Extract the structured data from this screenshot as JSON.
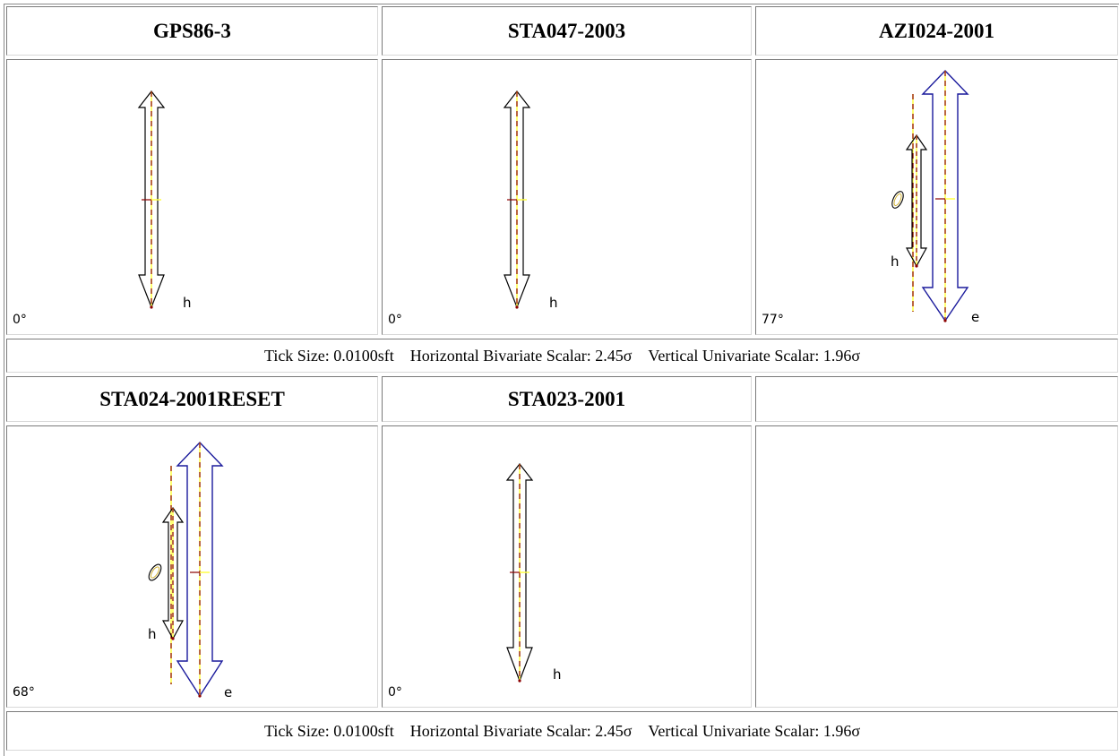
{
  "rows": [
    {
      "panels": [
        {
          "name": "GPS86-3",
          "angle": "0°",
          "labels": {
            "h": "h"
          }
        },
        {
          "name": "STA047-2003",
          "angle": "0°",
          "labels": {
            "h": "h"
          }
        },
        {
          "name": "AZI024-2001",
          "angle": "77°",
          "labels": {
            "h": "h",
            "e": "e"
          }
        }
      ],
      "info": "Tick Size: 0.0100sft    Horizontal Bivariate Scalar: 2.45σ    Vertical Univariate Scalar: 1.96σ"
    },
    {
      "panels": [
        {
          "name": "STA024-2001RESET",
          "angle": "68°",
          "labels": {
            "h": "h",
            "e": "e"
          }
        },
        {
          "name": "STA023-2001",
          "angle": "0°",
          "labels": {
            "h": "h"
          }
        },
        {
          "name": "",
          "angle": "",
          "labels": {}
        }
      ],
      "info": "Tick Size: 0.0100sft    Horizontal Bivariate Scalar: 2.45σ    Vertical Univariate Scalar: 1.96σ"
    }
  ],
  "colors": {
    "arrow_black": "#000000",
    "arrow_blue": "#1a1a9c",
    "dash_red": "#8b0000",
    "dash_yellow": "#ffff44"
  }
}
